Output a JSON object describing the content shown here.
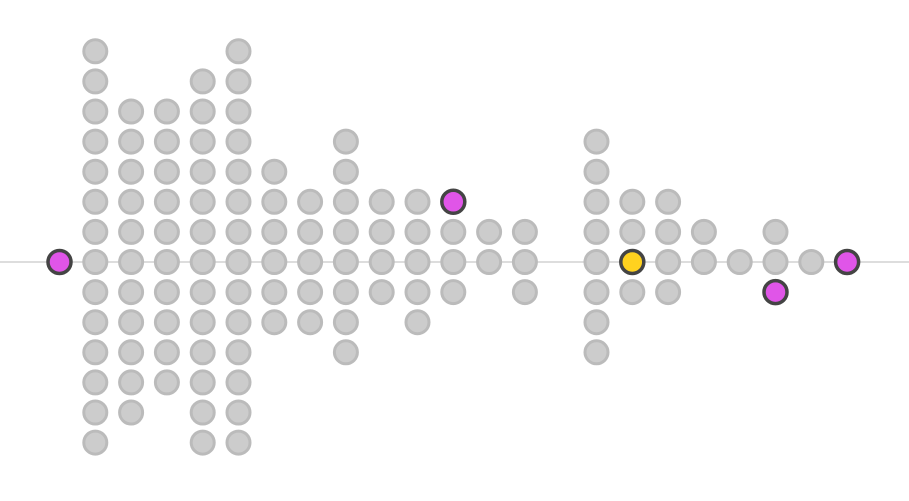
{
  "chart_data": {
    "type": "scatter",
    "subtype": "beeswarm",
    "title": "",
    "xlabel": "",
    "ylabel": "",
    "axis_line": true,
    "grid": false,
    "legend": false,
    "colors": {
      "default": "#cccccc",
      "default_stroke": "#bbbbbb",
      "magenta": "#e055e8",
      "yellow": "#ffd21f",
      "highlight_stroke": "#444444"
    },
    "columns": [
      {
        "x": 1,
        "up": 0,
        "down": 0
      },
      {
        "x": 2,
        "up": 7,
        "down": 6
      },
      {
        "x": 3,
        "up": 5,
        "down": 5
      },
      {
        "x": 4,
        "up": 5,
        "down": 4
      },
      {
        "x": 5,
        "up": 6,
        "down": 6
      },
      {
        "x": 6,
        "up": 7,
        "down": 6
      },
      {
        "x": 7,
        "up": 3,
        "down": 2
      },
      {
        "x": 8,
        "up": 2,
        "down": 2
      },
      {
        "x": 9,
        "up": 4,
        "down": 3
      },
      {
        "x": 10,
        "up": 2,
        "down": 1
      },
      {
        "x": 11,
        "up": 2,
        "down": 2
      },
      {
        "x": 12,
        "up": 2,
        "down": 1
      },
      {
        "x": 13,
        "up": 1,
        "down": 0
      },
      {
        "x": 14,
        "up": 1,
        "down": 1
      },
      {
        "x": 16,
        "up": 4,
        "down": 3
      },
      {
        "x": 17,
        "up": 2,
        "down": 1
      },
      {
        "x": 18,
        "up": 2,
        "down": 1
      },
      {
        "x": 19,
        "up": 1,
        "down": 0
      },
      {
        "x": 20,
        "up": 0,
        "down": 0
      },
      {
        "x": 21,
        "up": 1,
        "down": 1
      },
      {
        "x": 22,
        "up": 0,
        "down": 0
      },
      {
        "x": 23,
        "up": 0,
        "down": 0
      }
    ],
    "highlights": [
      {
        "x": 1,
        "level": 0,
        "color": "magenta"
      },
      {
        "x": 12,
        "level": 2,
        "color": "magenta"
      },
      {
        "x": 17,
        "level": 0,
        "color": "yellow"
      },
      {
        "x": 21,
        "level": -1,
        "color": "magenta"
      },
      {
        "x": 23,
        "level": 0,
        "color": "magenta"
      }
    ]
  }
}
